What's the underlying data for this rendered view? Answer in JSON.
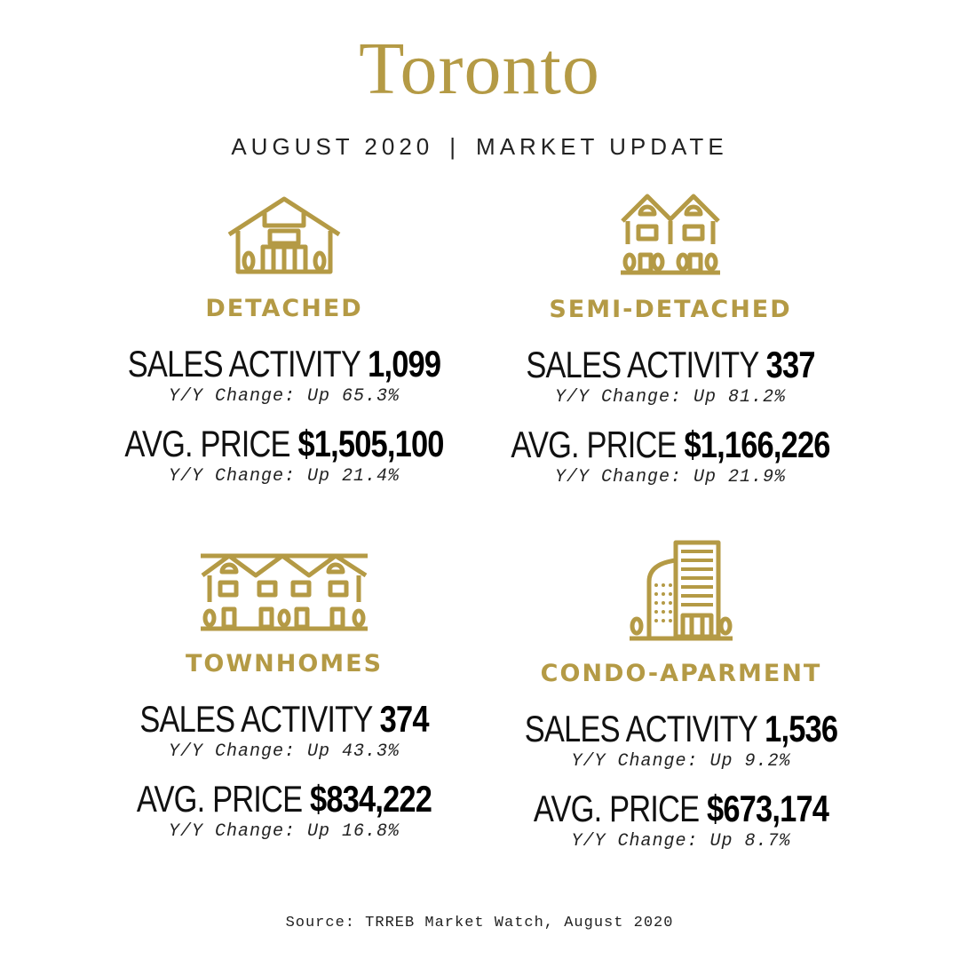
{
  "title": "Toronto",
  "subtitle": {
    "left": "AUGUST 2020",
    "separator": "|",
    "right": "MARKET UPDATE"
  },
  "accent_color": "#b49a45",
  "cards": {
    "detached": {
      "icon": "detached-house-icon",
      "heading": "DETACHED",
      "sales_label": "SALES ACTIVITY",
      "sales_value": "1,099",
      "sales_change": "Y/Y Change: Up 65.3%",
      "price_label": "AVG. PRICE",
      "price_value": "$1,505,100",
      "price_change": "Y/Y Change: Up 21.4%"
    },
    "semi": {
      "icon": "semi-detached-house-icon",
      "heading": "SEMI-DETACHED",
      "sales_label": "SALES ACTIVITY",
      "sales_value": "337",
      "sales_change": "Y/Y Change: Up 81.2%",
      "price_label": "AVG. PRICE",
      "price_value": "$1,166,226",
      "price_change": "Y/Y Change: Up 21.9%"
    },
    "town": {
      "icon": "townhomes-icon",
      "heading": "TOWNHOMES",
      "sales_label": "SALES ACTIVITY",
      "sales_value": "374",
      "sales_change": "Y/Y Change: Up 43.3%",
      "price_label": "AVG. PRICE",
      "price_value": "$834,222",
      "price_change": "Y/Y Change: Up 16.8%"
    },
    "condo": {
      "icon": "condo-building-icon",
      "heading": "CONDO-APARMENT",
      "sales_label": "SALES ACTIVITY",
      "sales_value": "1,536",
      "sales_change": "Y/Y Change: Up 9.2%",
      "price_label": "AVG. PRICE",
      "price_value": "$673,174",
      "price_change": "Y/Y Change: Up 8.7%"
    }
  },
  "source": "Source: TRREB Market Watch, August 2020"
}
